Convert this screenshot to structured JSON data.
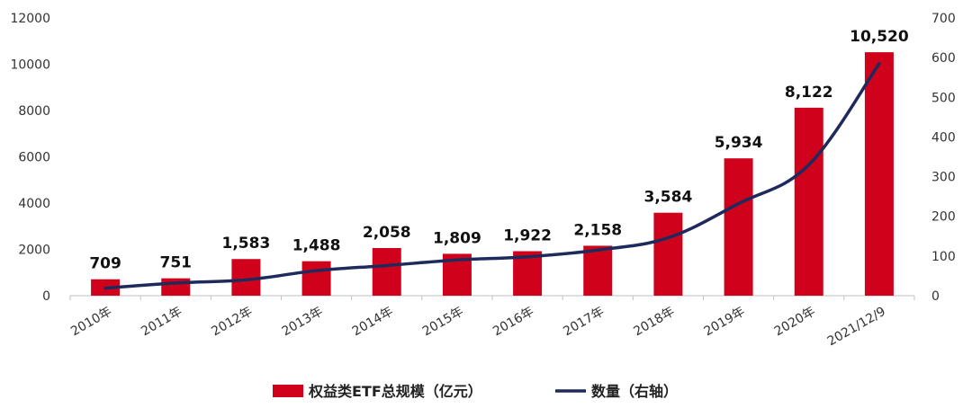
{
  "chart_data": {
    "type": "bar",
    "categories": [
      "2010年",
      "2011年",
      "2012年",
      "2013年",
      "2014年",
      "2015年",
      "2016年",
      "2017年",
      "2018年",
      "2019年",
      "2020年",
      "2021/12/9"
    ],
    "series": [
      {
        "name": "权益类ETF总规模（亿元）",
        "type": "bar",
        "axis": "left",
        "color": "#d0021b",
        "values": [
          709,
          751,
          1583,
          1488,
          2058,
          1809,
          1922,
          2158,
          3584,
          5934,
          8122,
          10520
        ],
        "labels": [
          "709",
          "751",
          "1,583",
          "1,488",
          "2,058",
          "1,809",
          "1,922",
          "2,158",
          "3,584",
          "5,934",
          "8,122",
          "10,520"
        ]
      },
      {
        "name": "数量（右轴）",
        "type": "line",
        "axis": "right",
        "color": "#1f2a5c",
        "values": [
          19,
          32,
          40,
          63,
          76,
          90,
          98,
          115,
          146,
          232,
          330,
          585
        ]
      }
    ],
    "y_left": {
      "ylim": [
        0,
        12000
      ],
      "ticks": [
        "0",
        "2000",
        "4000",
        "6000",
        "8000",
        "10000",
        "12000"
      ]
    },
    "y_right": {
      "ylim": [
        0,
        700
      ],
      "ticks": [
        "0",
        "100",
        "200",
        "300",
        "400",
        "500",
        "600",
        "700"
      ]
    },
    "grid": false,
    "legend": "bottom"
  }
}
